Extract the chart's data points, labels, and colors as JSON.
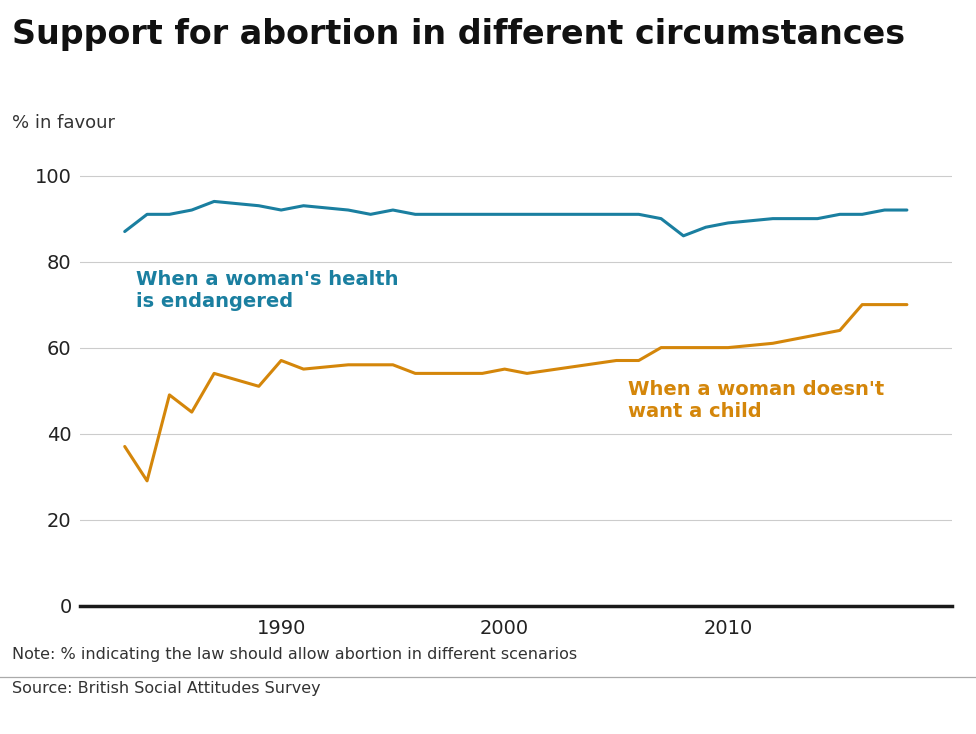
{
  "title": "Support for abortion in different circumstances",
  "ylabel": "% in favour",
  "note": "Note: % indicating the law should allow abortion in different scenarios",
  "source": "Source: British Social Attitudes Survey",
  "health_label": "When a woman's health\nis endangered",
  "child_label": "When a woman doesn't\nwant a child",
  "health_color": "#1a7fa0",
  "child_color": "#d4860a",
  "background_color": "#ffffff",
  "ylim": [
    0,
    105
  ],
  "yticks": [
    0,
    20,
    40,
    60,
    80,
    100
  ],
  "health_data": {
    "years": [
      1983,
      1984,
      1985,
      1986,
      1987,
      1989,
      1990,
      1991,
      1993,
      1994,
      1995,
      1996,
      1998,
      1999,
      2000,
      2001,
      2005,
      2006,
      2007,
      2008,
      2009,
      2010,
      2012,
      2013,
      2014,
      2015,
      2016,
      2017,
      2018
    ],
    "values": [
      87,
      91,
      91,
      92,
      94,
      93,
      92,
      93,
      92,
      91,
      92,
      91,
      91,
      91,
      91,
      91,
      91,
      91,
      90,
      86,
      88,
      89,
      90,
      90,
      90,
      91,
      91,
      92,
      92
    ]
  },
  "child_data": {
    "years": [
      1983,
      1984,
      1985,
      1986,
      1987,
      1989,
      1990,
      1991,
      1993,
      1994,
      1995,
      1996,
      1998,
      1999,
      2000,
      2001,
      2005,
      2006,
      2007,
      2008,
      2009,
      2010,
      2012,
      2013,
      2014,
      2015,
      2016,
      2017,
      2018
    ],
    "values": [
      37,
      29,
      49,
      45,
      54,
      51,
      57,
      55,
      56,
      56,
      56,
      54,
      54,
      54,
      55,
      54,
      57,
      57,
      60,
      60,
      60,
      60,
      61,
      62,
      63,
      64,
      70,
      70,
      70
    ]
  },
  "xlim": [
    1981,
    2020
  ],
  "title_fontsize": 24,
  "label_fontsize": 13,
  "annotation_fontsize": 14,
  "note_fontsize": 11.5,
  "tick_fontsize": 14
}
